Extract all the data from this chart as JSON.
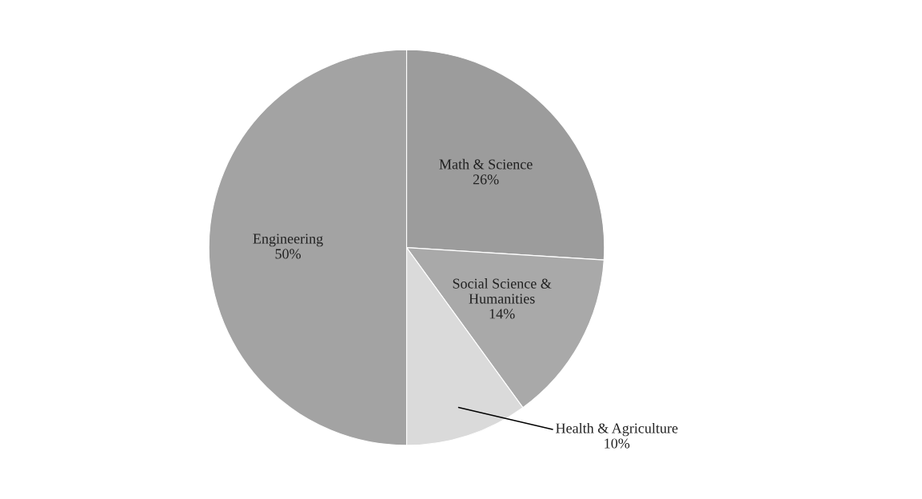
{
  "chart_data": {
    "type": "pie",
    "categories": [
      "Math & Science",
      "Social Science &\nHumanities",
      "Health & Agriculture",
      "Engineering"
    ],
    "values": [
      26,
      14,
      10,
      50
    ],
    "colors": [
      "#9c9c9c",
      "#a9a9a9",
      "#dadada",
      "#a3a3a3"
    ],
    "value_labels": [
      "26%",
      "14%",
      "10%",
      "50%"
    ],
    "legend": false
  }
}
